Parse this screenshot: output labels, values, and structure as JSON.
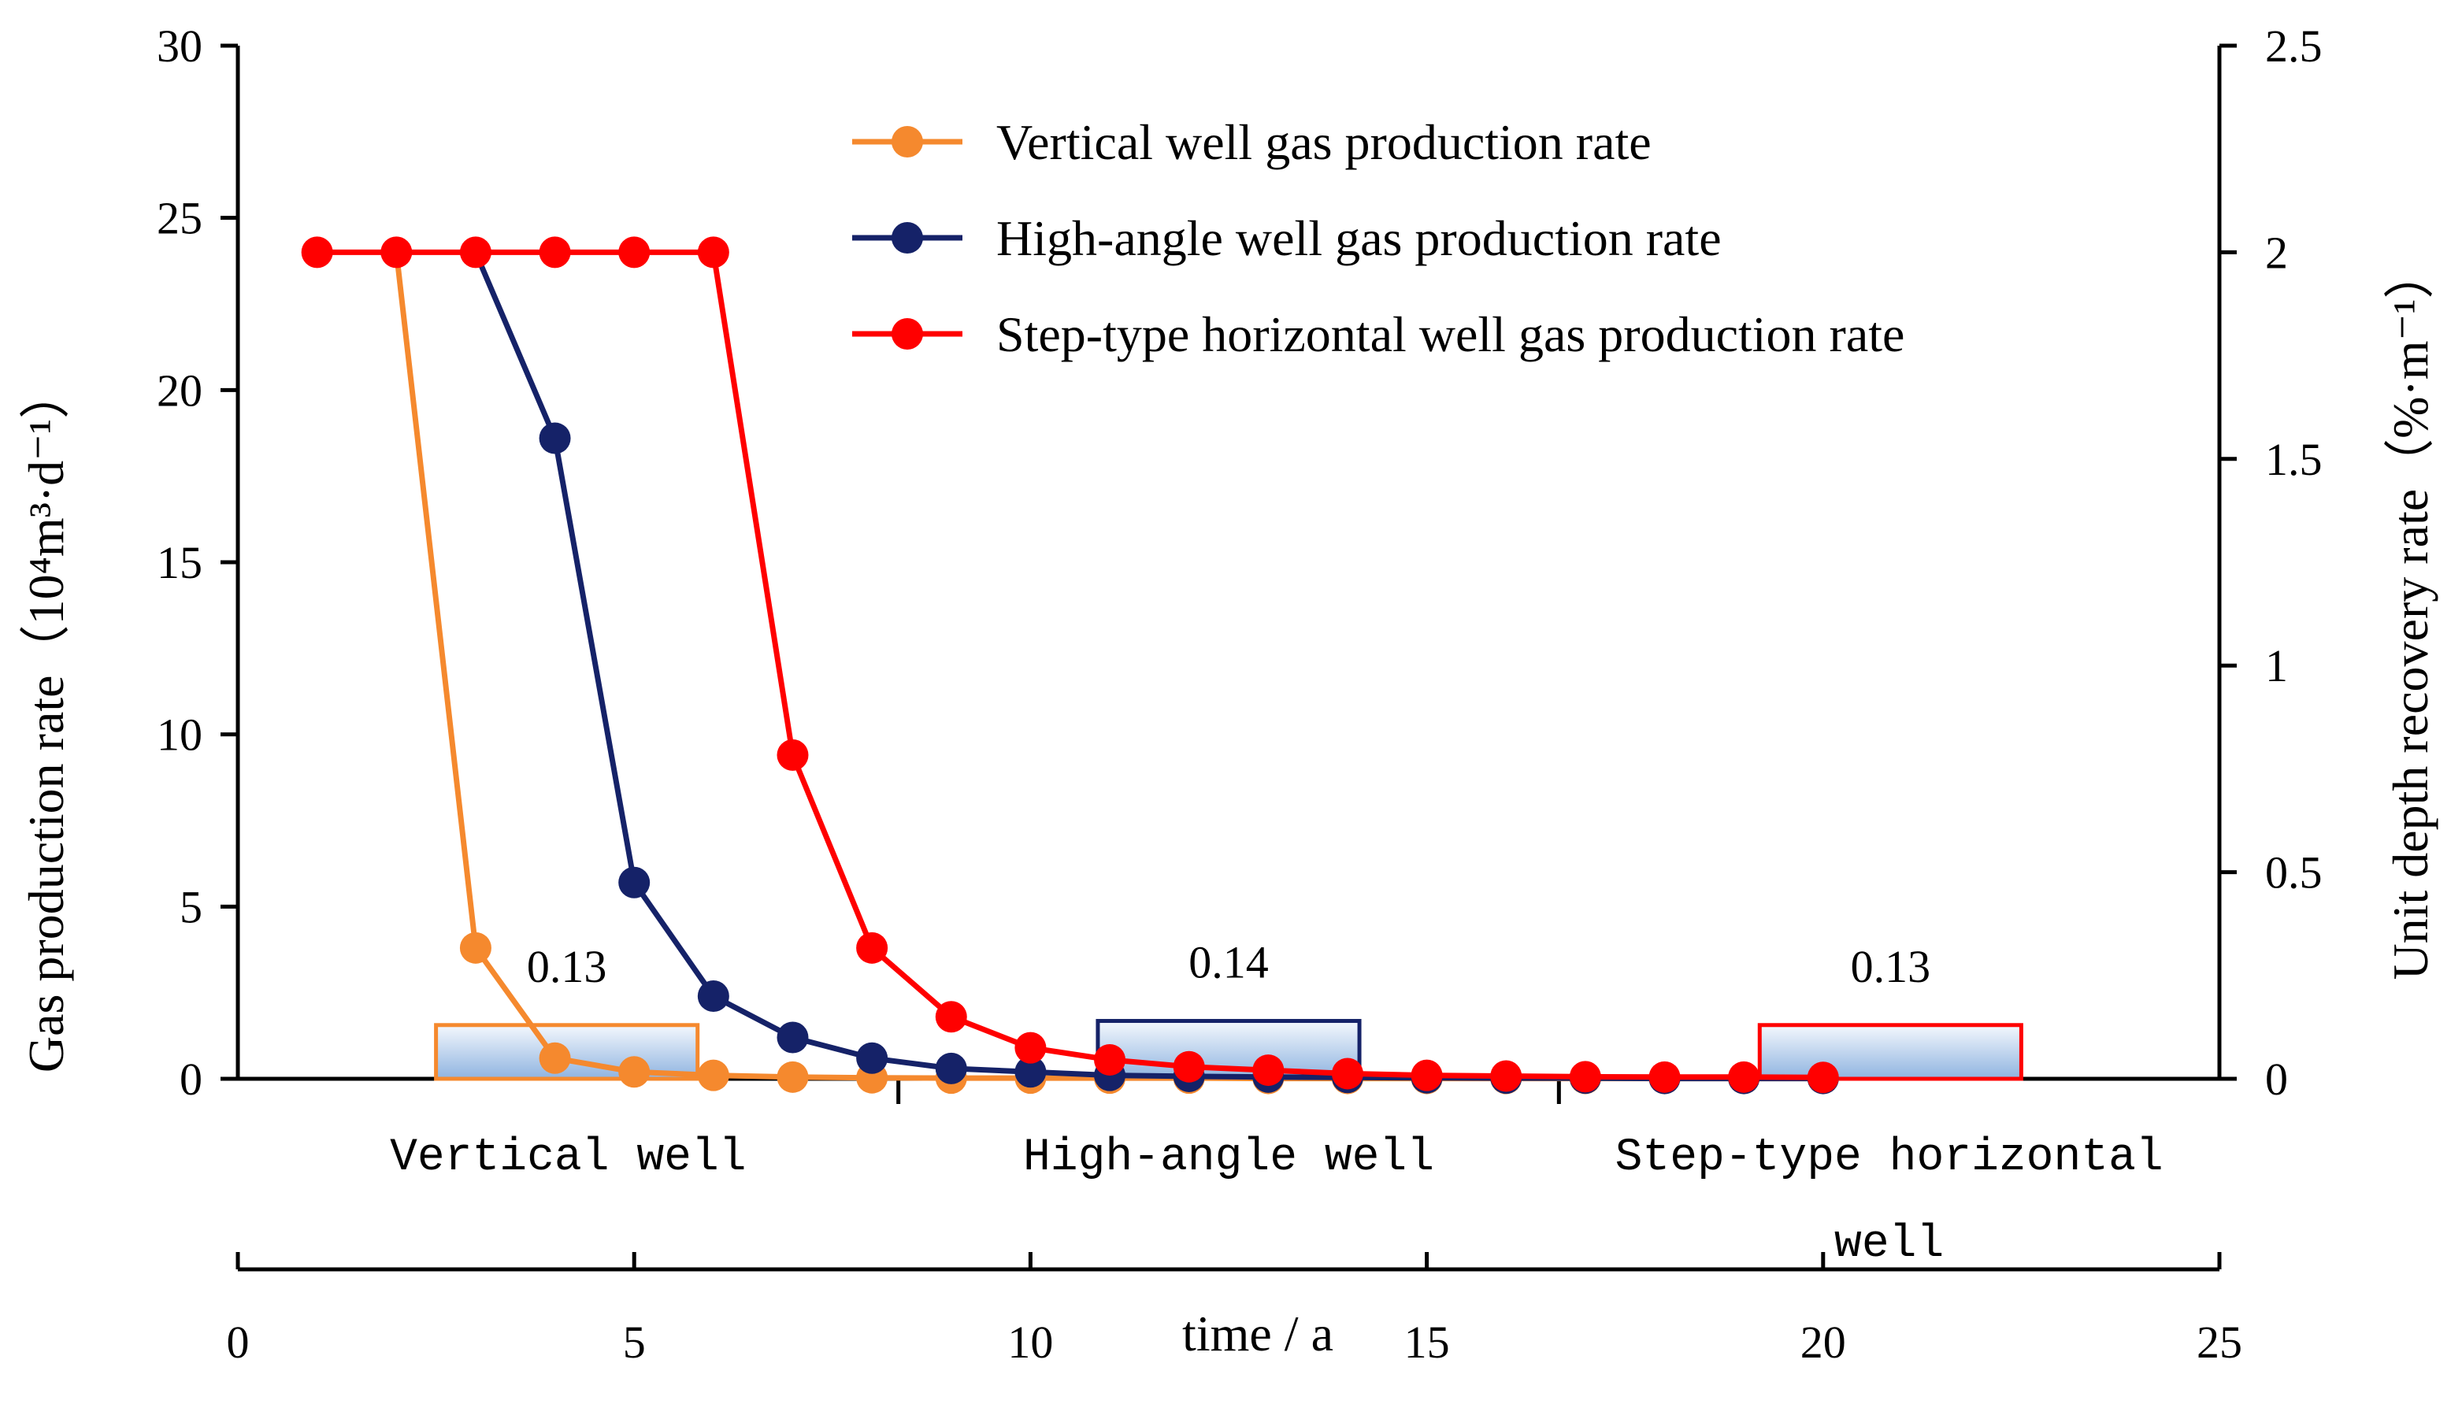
{
  "chart_data": {
    "type": "line",
    "title": "",
    "xlabel": "time / a",
    "ylabel_left": "Gas production rate（10⁴m³·d⁻¹）",
    "ylabel_right": "Unit depth recovery rate（%·m⁻¹）",
    "xlim": [
      0,
      25
    ],
    "ylim_left": [
      0,
      30
    ],
    "ylim_right": [
      0,
      2.5
    ],
    "x_ticks": [
      "0",
      "5",
      "10",
      "15",
      "20",
      "25"
    ],
    "y_left_ticks": [
      "0",
      "5",
      "10",
      "15",
      "20",
      "25",
      "30"
    ],
    "y_right_ticks": [
      "0",
      "0.5",
      "1",
      "1.5",
      "2",
      "2.5"
    ],
    "grid": false,
    "legend_position": "top-right",
    "series": [
      {
        "name": "Vertical well gas production rate",
        "color": "#F5892E",
        "x": [
          1,
          2,
          3,
          4,
          5,
          6,
          7,
          8,
          9,
          10,
          11,
          12,
          13,
          14,
          15,
          16,
          17,
          18,
          19,
          20
        ],
        "values": [
          24,
          24,
          3.8,
          0.6,
          0.2,
          0.1,
          0.05,
          0.03,
          0.02,
          0.02,
          0.02,
          0.02,
          0.01,
          0.01,
          0.01,
          0.01,
          0.01,
          0.01,
          0.01,
          0.01
        ],
        "plotted_from_index": 1,
        "markers_from_index": 2
      },
      {
        "name": "High-angle well gas production rate",
        "color": "#152268",
        "x": [
          1,
          2,
          3,
          4,
          5,
          6,
          7,
          8,
          9,
          10,
          11,
          12,
          13,
          14,
          15,
          16,
          17,
          18,
          19,
          20
        ],
        "values": [
          24,
          24,
          24,
          18.6,
          5.7,
          2.4,
          1.2,
          0.6,
          0.3,
          0.2,
          0.1,
          0.07,
          0.05,
          0.04,
          0.03,
          0.02,
          0.02,
          0.01,
          0.01,
          0.01
        ],
        "plotted_from_index": 2,
        "markers_from_index": 3
      },
      {
        "name": "Step-type horizontal well gas production rate",
        "color": "#FF0000",
        "x": [
          1,
          2,
          3,
          4,
          5,
          6,
          7,
          8,
          9,
          10,
          11,
          12,
          13,
          14,
          15,
          16,
          17,
          18,
          19,
          20
        ],
        "values": [
          24,
          24,
          24,
          24,
          24,
          24,
          9.4,
          3.8,
          1.8,
          0.9,
          0.55,
          0.35,
          0.25,
          0.15,
          0.1,
          0.08,
          0.06,
          0.05,
          0.05,
          0.04
        ],
        "plotted_from_index": 0,
        "markers_from_index": 0
      }
    ],
    "bars": {
      "axis": "right",
      "categories": [
        "Vertical well",
        "High-angle well",
        "Step-type horizontal well"
      ],
      "values": [
        0.13,
        0.14,
        0.13
      ],
      "labels": [
        "0.13",
        "0.14",
        "0.13"
      ],
      "colors": [
        "#F5892E",
        "#152268",
        "#FF0000"
      ],
      "center_x": [
        4.15,
        12.5,
        20.85
      ],
      "width_x": 3.3
    }
  }
}
